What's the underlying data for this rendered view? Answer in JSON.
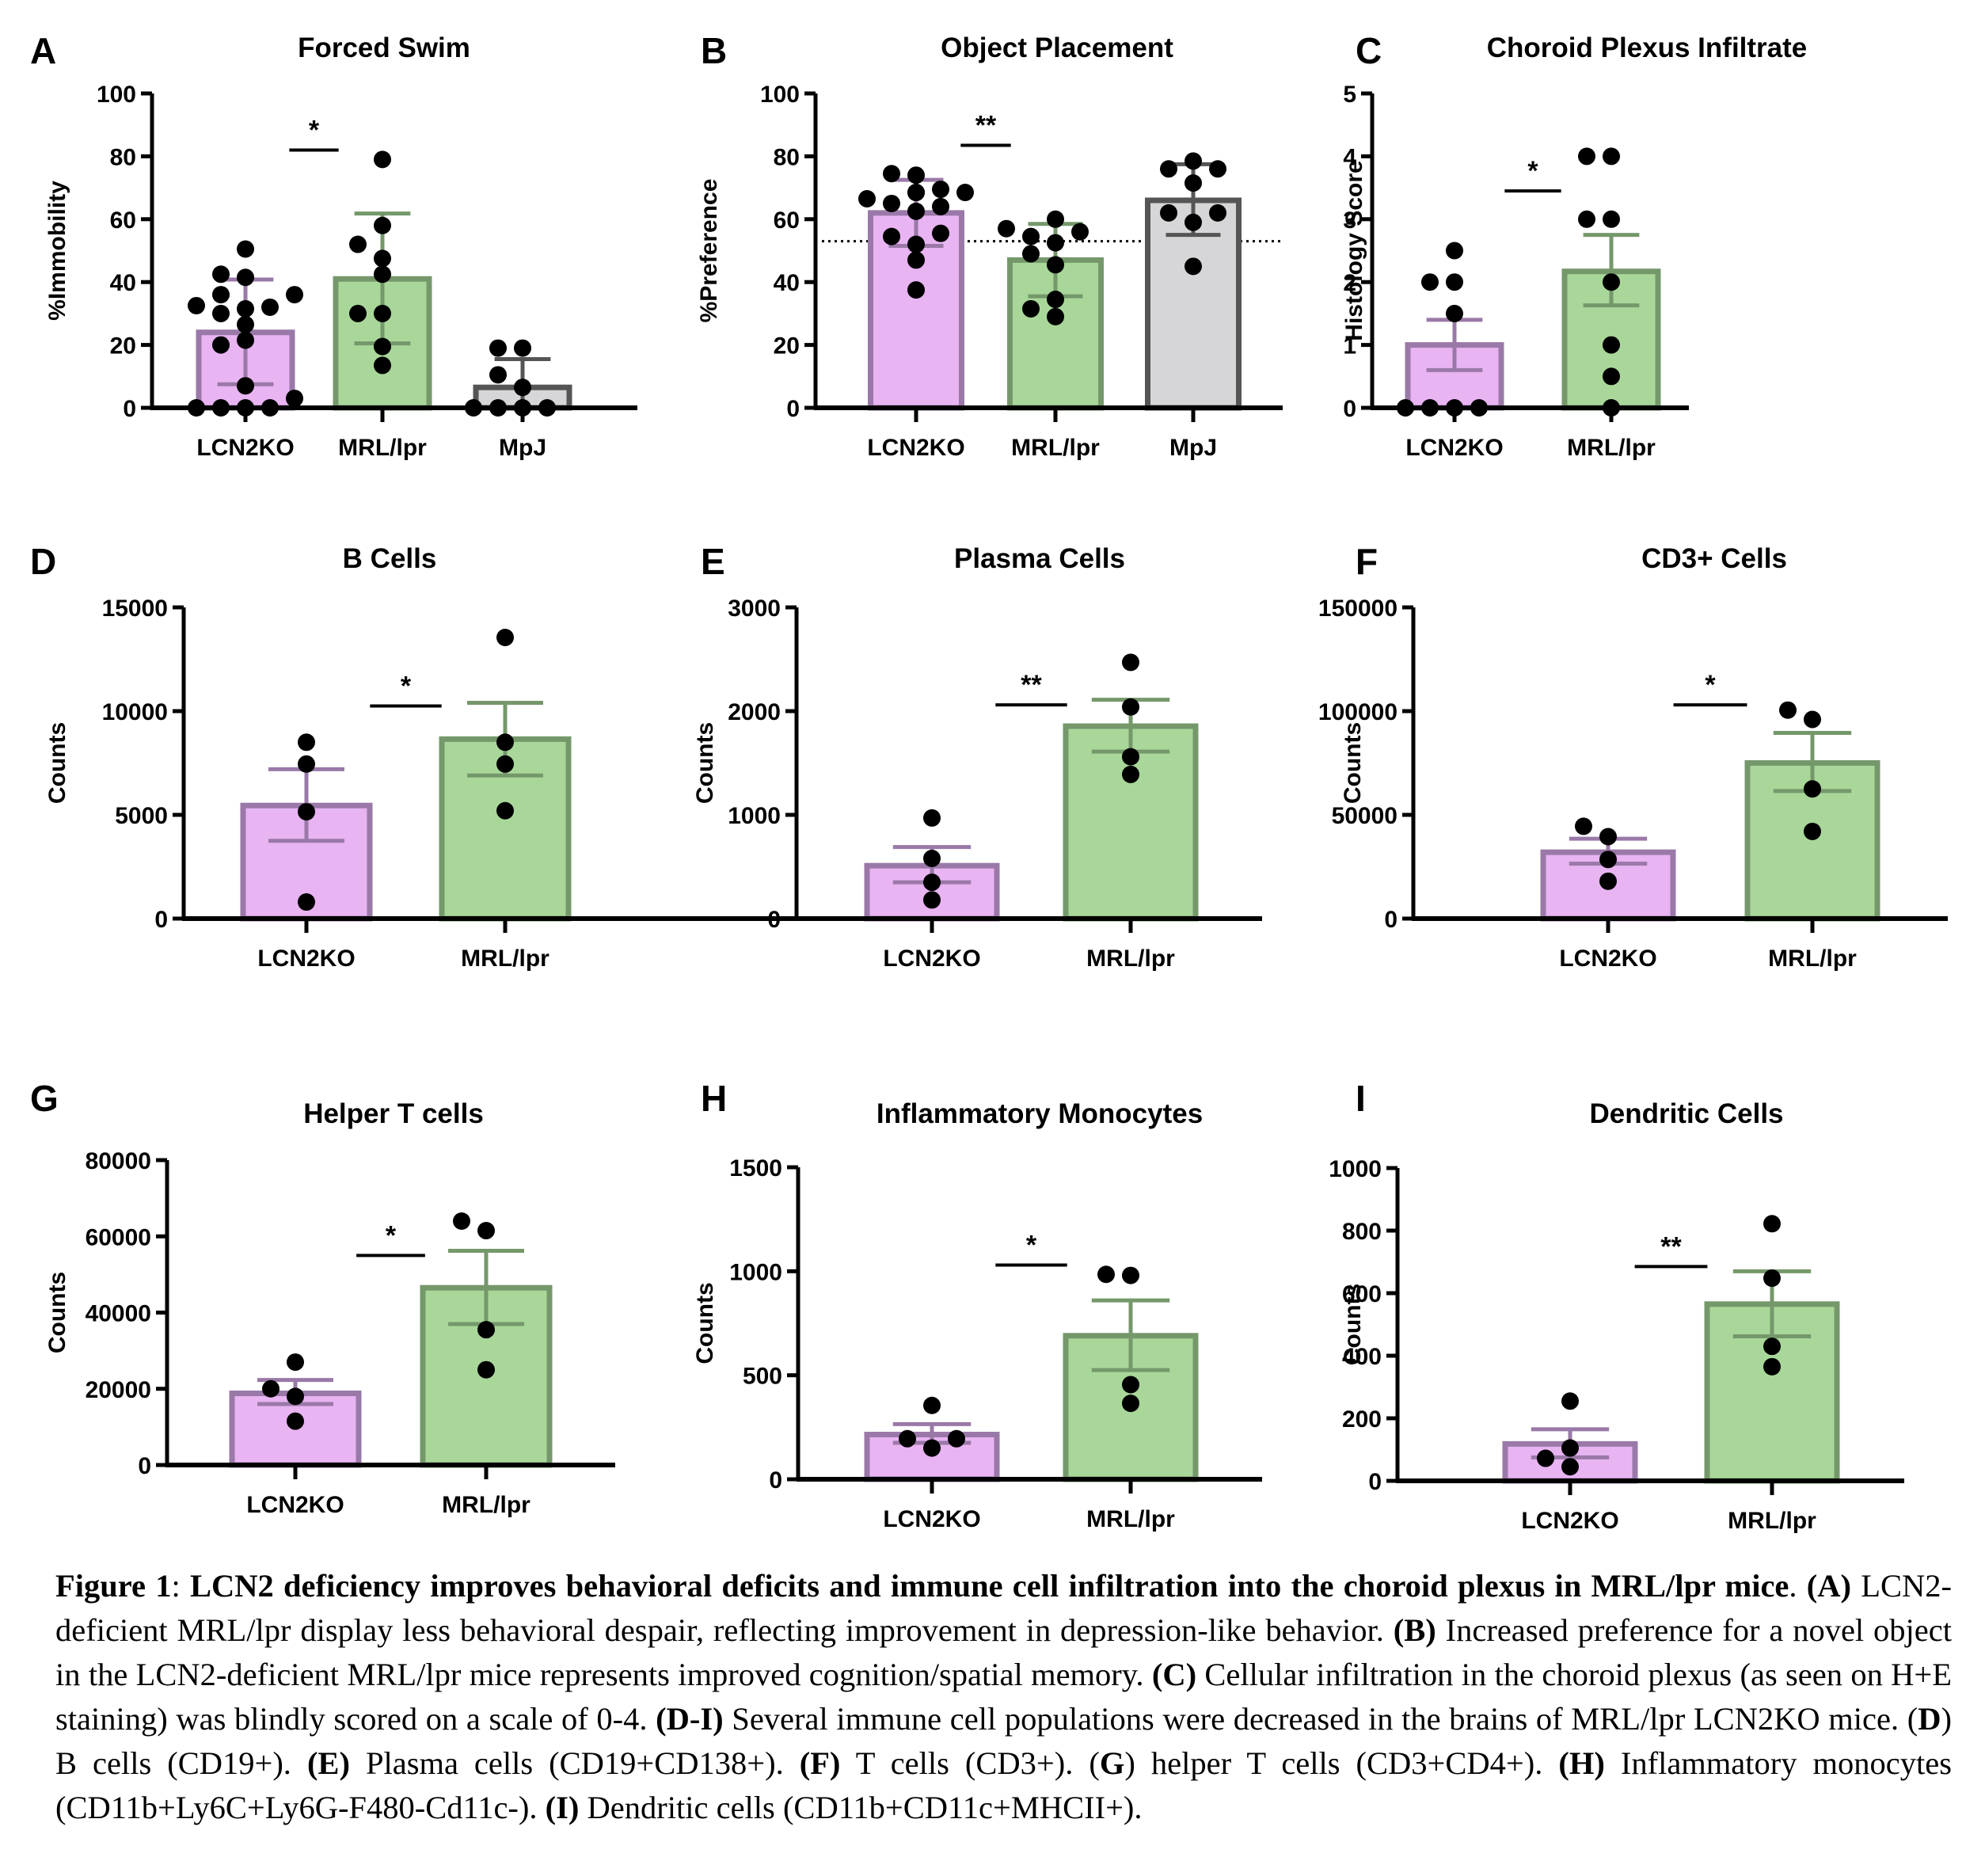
{
  "figure": {
    "colors": {
      "LCN2KO": {
        "fill": "#e8b4f2",
        "stroke": "#9a79a8"
      },
      "MRL/lpr": {
        "fill": "#a9d79a",
        "stroke": "#75986b"
      },
      "MpJ": {
        "fill": "#d6d6d8",
        "stroke": "#555555"
      },
      "dot": "#000000"
    }
  },
  "chart_data": [
    {
      "panel": "A",
      "type": "bar",
      "title": "Forced Swim",
      "ylabel": "%Immobility",
      "ylim": [
        0,
        100
      ],
      "yticks": [
        0,
        20,
        40,
        60,
        80,
        100
      ],
      "categories": [
        "LCN2KO",
        "MRL/lpr",
        "MpJ"
      ],
      "means": [
        24,
        41,
        6.5
      ],
      "error": [
        [
          7.5,
          40.8
        ],
        [
          20.5,
          61.8
        ],
        [
          0,
          15.5
        ]
      ],
      "error_type": "SD",
      "points": [
        [
          0,
          0,
          0,
          0,
          3,
          7,
          21.5,
          20,
          26.5,
          30,
          31.5,
          32,
          32.5,
          36,
          36,
          41.5,
          42.5,
          50.5
        ],
        [
          13.5,
          19.5,
          30,
          30,
          42.5,
          47.5,
          52,
          58,
          79
        ],
        [
          0,
          0,
          0,
          0,
          6.5,
          10.5,
          19,
          19
        ]
      ],
      "significance": [
        {
          "between": [
            0,
            1
          ],
          "label": "*",
          "y": 82
        }
      ]
    },
    {
      "panel": "B",
      "type": "bar",
      "title": "Object Placement",
      "ylabel": "%Preference",
      "ylim": [
        0,
        100
      ],
      "yticks": [
        0,
        20,
        40,
        60,
        80,
        100
      ],
      "categories": [
        "LCN2KO",
        "MRL/lpr",
        "MpJ"
      ],
      "means": [
        62,
        47,
        66
      ],
      "error": [
        [
          51.5,
          72.5
        ],
        [
          35.5,
          58.5
        ],
        [
          55,
          77.5
        ]
      ],
      "error_type": "SD",
      "reference_line": 53,
      "points": [
        [
          37.5,
          47,
          52,
          54.5,
          55.5,
          62.5,
          65,
          64,
          66.5,
          68.5,
          68.5,
          69.5,
          68.5,
          74,
          74.5
        ],
        [
          29,
          31.5,
          34.5,
          45.5,
          49,
          52.5,
          54.5,
          56,
          57,
          60
        ],
        [
          45,
          59,
          62,
          62,
          71.5,
          76,
          76,
          78.5
        ]
      ],
      "significance": [
        {
          "between": [
            0,
            1
          ],
          "label": "**",
          "y": 83.5
        }
      ]
    },
    {
      "panel": "C",
      "type": "bar",
      "title": "Choroid Plexus Infiltrate",
      "ylabel": "Histology Score",
      "ylim": [
        0,
        5
      ],
      "yticks": [
        0,
        1,
        2,
        3,
        4,
        5
      ],
      "categories": [
        "LCN2KO",
        "MRL/lpr"
      ],
      "means": [
        1.0,
        2.17
      ],
      "error": [
        [
          0.6,
          1.4
        ],
        [
          1.63,
          2.75
        ]
      ],
      "error_type": "SEM",
      "points": [
        [
          0,
          0,
          0,
          0,
          1.5,
          2,
          2,
          2.5
        ],
        [
          0,
          0.5,
          1,
          2,
          3,
          3,
          4,
          4
        ]
      ],
      "significance": [
        {
          "between": [
            0,
            1
          ],
          "label": "*",
          "y": 3.45
        }
      ]
    },
    {
      "panel": "D",
      "type": "bar",
      "title": "B Cells",
      "ylabel": "Counts",
      "ylim": [
        0,
        15000
      ],
      "yticks": [
        0,
        5000,
        10000,
        15000
      ],
      "categories": [
        "LCN2KO",
        "MRL/lpr"
      ],
      "means": [
        5450,
        8650
      ],
      "error": [
        [
          3750,
          7200
        ],
        [
          6900,
          10400
        ]
      ],
      "error_type": "SEM",
      "points": [
        [
          800,
          5150,
          7450,
          8500
        ],
        [
          5200,
          7450,
          8500,
          13550
        ]
      ],
      "significance": [
        {
          "between": [
            0,
            1
          ],
          "label": "*",
          "y": 10250
        }
      ]
    },
    {
      "panel": "E",
      "type": "bar",
      "title": "Plasma Cells",
      "ylabel": "Counts",
      "ylim": [
        0,
        3000
      ],
      "yticks": [
        0,
        1000,
        2000,
        3000
      ],
      "categories": [
        "LCN2KO",
        "MRL/lpr"
      ],
      "means": [
        510,
        1855
      ],
      "error": [
        [
          350,
          690
        ],
        [
          1610,
          2110
        ]
      ],
      "error_type": "SEM",
      "points": [
        [
          180,
          350,
          580,
          970
        ],
        [
          1390,
          1560,
          2040,
          2470
        ]
      ],
      "significance": [
        {
          "between": [
            0,
            1
          ],
          "label": "**",
          "y": 2060
        }
      ]
    },
    {
      "panel": "F",
      "type": "bar",
      "title": "CD3+ Cells",
      "ylabel": "Counts",
      "ylim": [
        0,
        150000
      ],
      "yticks": [
        0,
        50000,
        100000,
        150000
      ],
      "categories": [
        "LCN2KO",
        "MRL/lpr"
      ],
      "means": [
        32000,
        75000
      ],
      "error": [
        [
          26500,
          38500
        ],
        [
          61500,
          89500
        ]
      ],
      "error_type": "SEM",
      "points": [
        [
          18000,
          28500,
          39500,
          44500
        ],
        [
          42000,
          62500,
          96000,
          100500
        ]
      ],
      "significance": [
        {
          "between": [
            0,
            1
          ],
          "label": "*",
          "y": 103000
        }
      ]
    },
    {
      "panel": "G",
      "type": "bar",
      "title": "Helper T cells",
      "ylabel": "Counts",
      "ylim": [
        0,
        80000
      ],
      "yticks": [
        0,
        20000,
        40000,
        60000,
        80000
      ],
      "categories": [
        "LCN2KO",
        "MRL/lpr"
      ],
      "means": [
        18800,
        46500
      ],
      "error": [
        [
          16000,
          22300
        ],
        [
          37000,
          56200
        ]
      ],
      "error_type": "SEM",
      "points": [
        [
          11500,
          18000,
          20000,
          27000
        ],
        [
          25000,
          35500,
          61500,
          64000
        ]
      ],
      "significance": [
        {
          "between": [
            0,
            1
          ],
          "label": "*",
          "y": 55000
        }
      ]
    },
    {
      "panel": "H",
      "type": "bar",
      "title": "Inflammatory Monocytes",
      "ylabel": "Counts",
      "ylim": [
        0,
        1500
      ],
      "yticks": [
        0,
        500,
        1000,
        1500
      ],
      "categories": [
        "LCN2KO",
        "MRL/lpr"
      ],
      "means": [
        215,
        690
      ],
      "error": [
        [
          175,
          265
        ],
        [
          525,
          860
        ]
      ],
      "error_type": "SEM",
      "points": [
        [
          150,
          195,
          195,
          355
        ],
        [
          365,
          455,
          980,
          985
        ]
      ],
      "significance": [
        {
          "between": [
            0,
            1
          ],
          "label": "*",
          "y": 1030
        }
      ]
    },
    {
      "panel": "I",
      "type": "bar",
      "title": "Dendritic Cells",
      "ylabel": "Counts",
      "ylim": [
        0,
        1000
      ],
      "yticks": [
        0,
        200,
        400,
        600,
        800,
        1000
      ],
      "categories": [
        "LCN2KO",
        "MRL/lpr"
      ],
      "means": [
        118,
        565
      ],
      "error": [
        [
          75,
          165
        ],
        [
          462,
          670
        ]
      ],
      "error_type": "SEM",
      "points": [
        [
          45,
          72,
          105,
          255
        ],
        [
          365,
          430,
          648,
          822
        ]
      ],
      "significance": [
        {
          "between": [
            0,
            1
          ],
          "label": "**",
          "y": 685
        }
      ]
    }
  ],
  "caption": {
    "figure_label": "Figure 1",
    "sep": ": ",
    "title": "LCN2 deficiency improves behavioral deficits and immune cell infiltration into the choroid plexus in MRL/lpr mice",
    "title_end": ". ",
    "segments": [
      {
        "bold": "(A)",
        "text": " LCN2-deficient MRL/lpr display less behavioral despair, reflecting improvement in depression-like behavior. "
      },
      {
        "bold": "(B)",
        "text": " Increased preference for a novel object in the LCN2-deficient MRL/lpr mice represents improved cognition/spatial memory. "
      },
      {
        "bold": "(C)",
        "text": " Cellular infiltration in the choroid plexus (as seen on H+E staining) was blindly scored on a scale of 0-4. "
      },
      {
        "bold": "(D-I)",
        "text": " Several immune cell populations were decreased in the brains of MRL/lpr LCN2KO mice. ("
      },
      {
        "bold": "D",
        "text": ") B cells (CD19+). "
      },
      {
        "bold": "(E)",
        "text": " Plasma cells (CD19+CD138+). "
      },
      {
        "bold": "(F)",
        "text": " T cells (CD3+). ("
      },
      {
        "bold": "G",
        "text": ") helper T cells (CD3+CD4+). "
      },
      {
        "bold": "(H)",
        "text": " Inflammatory monocytes (CD11b+Ly6C+Ly6G-F480-Cd11c-). "
      },
      {
        "bold": "(I)",
        "text": " Dendritic cells (CD11b+CD11c+MHCII+)."
      }
    ]
  }
}
